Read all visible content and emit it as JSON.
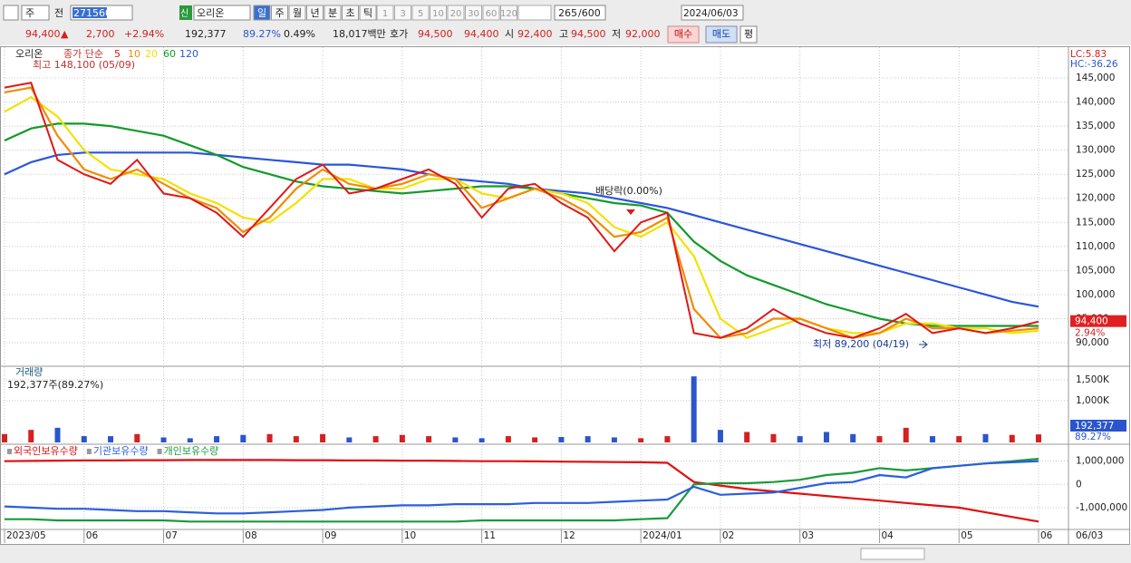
{
  "toolbar": {
    "period": "주",
    "prev": "전",
    "code": "271560",
    "badge": "신",
    "name": "오리온",
    "units": [
      "일",
      "주",
      "월",
      "년",
      "분",
      "초",
      "틱"
    ],
    "ticks": [
      "1",
      "3",
      "5",
      "10",
      "20",
      "30",
      "60",
      "120"
    ],
    "count": "265",
    "max_count": "/600",
    "date": "2024/06/03"
  },
  "info": {
    "price": "94,400",
    "arrow": "▲",
    "change": "2,700",
    "change_pct": "+2.94%",
    "volume": "192,377",
    "volume_ratio": "89.27%",
    "turnover": "0.49%",
    "amount": "18,017백만",
    "quote_label": "호가",
    "ask": "94,500",
    "bid": "94,400",
    "open_label": "시",
    "open": "92,400",
    "high_label": "고",
    "high": "94,500",
    "low_label": "저",
    "low": "92,000",
    "buy": "매수",
    "sell": "매도",
    "avg": "평"
  },
  "chart_data": [
    {
      "type": "line",
      "title": "오리온",
      "ma_label": "종가 단순",
      "lc": "LC:5.83",
      "hc": "HC:-36.26",
      "last_price_label": "94,400",
      "change_label": "2.94%",
      "high_note": "최고 148,100 (05/09)",
      "dividend_note": "배당락(0.00%)",
      "low_note": "최저 89,200 (04/19)",
      "grid": true,
      "ylim": [
        85300,
        151400
      ],
      "yticks": [
        {
          "value": 90000,
          "label": "90,000"
        },
        {
          "value": 95000,
          "label": "95,000"
        },
        {
          "value": 100000,
          "label": "100,000"
        },
        {
          "value": 105000,
          "label": "105,000"
        },
        {
          "value": 110000,
          "label": "110,000"
        },
        {
          "value": 115000,
          "label": "115,000"
        },
        {
          "value": 120000,
          "label": "120,000"
        },
        {
          "value": 125000,
          "label": "125,000"
        },
        {
          "value": 130000,
          "label": "130,000"
        },
        {
          "value": 135000,
          "label": "135,000"
        },
        {
          "value": 140000,
          "label": "140,000"
        },
        {
          "value": 145000,
          "label": "145,000"
        }
      ],
      "series": [
        {
          "name": "5",
          "color": "#e01818",
          "values": [
            143000,
            144000,
            128000,
            125000,
            123000,
            128000,
            121000,
            120000,
            117000,
            112000,
            118000,
            124000,
            127000,
            121000,
            122000,
            124000,
            126000,
            123000,
            116000,
            122000,
            123000,
            119000,
            116000,
            109000,
            115000,
            117000,
            92000,
            91000,
            93000,
            97000,
            94000,
            92000,
            91000,
            93000,
            96000,
            92000,
            93000,
            92000,
            93000,
            94400
          ]
        },
        {
          "name": "10",
          "color": "#f08c00",
          "values": [
            142000,
            143000,
            133000,
            126000,
            124000,
            126000,
            123000,
            120000,
            118000,
            113000,
            116000,
            122000,
            126000,
            123000,
            122000,
            123000,
            125000,
            124000,
            118000,
            120000,
            122000,
            120000,
            117000,
            112000,
            113000,
            116000,
            97000,
            91000,
            92000,
            95000,
            95000,
            93000,
            91000,
            92000,
            95000,
            93000,
            93000,
            92000,
            92500,
            93000
          ]
        },
        {
          "name": "20",
          "color": "#f2e200",
          "values": [
            138000,
            141000,
            137000,
            130000,
            126000,
            125000,
            124000,
            121000,
            119000,
            116000,
            115000,
            119000,
            124000,
            124000,
            122000,
            122000,
            124000,
            124000,
            121000,
            120000,
            122000,
            121000,
            119000,
            114000,
            112000,
            115000,
            108000,
            95000,
            91000,
            93000,
            95000,
            93000,
            92000,
            92000,
            94000,
            94000,
            93000,
            93000,
            92000,
            92500
          ]
        },
        {
          "name": "60",
          "color": "#139a2a",
          "values": [
            132000,
            134500,
            135500,
            135500,
            135000,
            134000,
            133000,
            131000,
            129000,
            126500,
            125000,
            123500,
            122500,
            122000,
            121500,
            121000,
            121500,
            122000,
            122500,
            122500,
            122000,
            121000,
            120000,
            119000,
            118500,
            117000,
            111000,
            107000,
            104000,
            102000,
            100000,
            98000,
            96500,
            95000,
            94000,
            93500,
            93500,
            93500,
            93500,
            93500
          ]
        },
        {
          "name": "120",
          "color": "#2a55dd",
          "values": [
            125000,
            127500,
            129000,
            129500,
            129500,
            129500,
            129500,
            129500,
            129000,
            128500,
            128000,
            127500,
            127000,
            127000,
            126500,
            126000,
            125000,
            124000,
            123500,
            123000,
            122000,
            121500,
            121000,
            120000,
            119000,
            118000,
            116500,
            115000,
            113500,
            112000,
            110500,
            109000,
            107500,
            106000,
            104500,
            103000,
            101500,
            100000,
            98500,
            97500
          ]
        }
      ]
    },
    {
      "type": "bar",
      "title": "거래량",
      "subtitle": "192,377주(89.27%)",
      "last_label": "192,377",
      "ratio_label": "89.27%",
      "up_color": "#d42020",
      "down_color": "#2a55cc",
      "ylim": [
        0,
        1800000
      ],
      "yticks": [
        {
          "value": 1000000,
          "label": "1,000K"
        },
        {
          "value": 1500000,
          "label": "1,500K"
        }
      ],
      "values": [
        200000,
        300000,
        350000,
        150000,
        150000,
        200000,
        120000,
        100000,
        150000,
        180000,
        200000,
        150000,
        200000,
        120000,
        150000,
        180000,
        150000,
        120000,
        100000,
        150000,
        120000,
        130000,
        150000,
        120000,
        100000,
        150000,
        1580000,
        300000,
        250000,
        200000,
        150000,
        250000,
        200000,
        150000,
        350000,
        150000,
        150000,
        200000,
        180000,
        192377
      ]
    },
    {
      "type": "line",
      "cursor_label": "06/03",
      "ylim": [
        -1900000,
        1650000
      ],
      "yticks": [
        {
          "value": -1000000,
          "label": "-1,000,000"
        },
        0,
        {
          "value": 1000000,
          "label": "1,000,000"
        }
      ],
      "categories": [
        "2023/05",
        null,
        null,
        "06",
        null,
        null,
        "07",
        null,
        null,
        "08",
        null,
        null,
        "09",
        null,
        null,
        "10",
        null,
        null,
        "11",
        null,
        null,
        "12",
        null,
        null,
        "2024/01",
        null,
        null,
        "02",
        null,
        null,
        "03",
        null,
        null,
        "04",
        null,
        null,
        "05",
        null,
        null,
        "06"
      ],
      "series": [
        {
          "name": "외국인보유수량",
          "color": "#e01010",
          "values": [
            1000000,
            1010000,
            1020000,
            1030000,
            1030000,
            1040000,
            1040000,
            1050000,
            1050000,
            1050000,
            1050000,
            1040000,
            1040000,
            1030000,
            1030000,
            1020000,
            1020000,
            1010000,
            1000000,
            1000000,
            990000,
            980000,
            970000,
            960000,
            950000,
            930000,
            100000,
            -50000,
            -200000,
            -300000,
            -400000,
            -500000,
            -600000,
            -700000,
            -800000,
            -900000,
            -1000000,
            -1200000,
            -1400000,
            -1600000
          ]
        },
        {
          "name": "기관보유수량",
          "color": "#2a5fe0",
          "values": [
            -950000,
            -1000000,
            -1050000,
            -1050000,
            -1100000,
            -1150000,
            -1150000,
            -1200000,
            -1250000,
            -1250000,
            -1200000,
            -1150000,
            -1100000,
            -1000000,
            -950000,
            -900000,
            -900000,
            -850000,
            -850000,
            -850000,
            -800000,
            -800000,
            -800000,
            -750000,
            -700000,
            -650000,
            -100000,
            -450000,
            -400000,
            -350000,
            -150000,
            50000,
            100000,
            400000,
            300000,
            700000,
            800000,
            900000,
            950000,
            1000000
          ]
        },
        {
          "name": "개인보유수량",
          "color": "#1a9a3a",
          "values": [
            -1500000,
            -1500000,
            -1550000,
            -1550000,
            -1550000,
            -1550000,
            -1550000,
            -1600000,
            -1600000,
            -1600000,
            -1600000,
            -1600000,
            -1600000,
            -1600000,
            -1600000,
            -1600000,
            -1600000,
            -1600000,
            -1550000,
            -1550000,
            -1550000,
            -1550000,
            -1550000,
            -1550000,
            -1500000,
            -1450000,
            0,
            50000,
            50000,
            100000,
            200000,
            400000,
            500000,
            700000,
            600000,
            700000,
            800000,
            900000,
            1000000,
            1100000
          ]
        }
      ]
    }
  ]
}
